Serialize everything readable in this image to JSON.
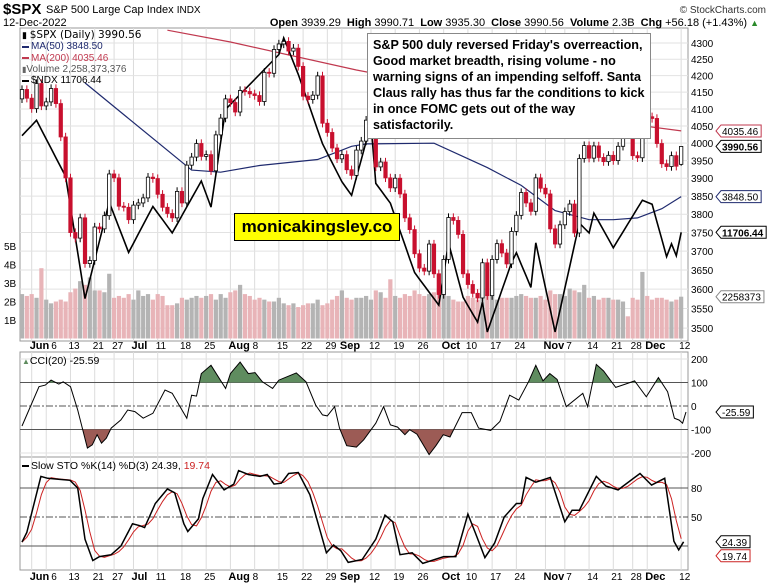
{
  "header": {
    "symbol": "$SPX",
    "name": "S&P 500 Large Cap Index",
    "exchange": "INDX",
    "copyright": "© StockCharts.com",
    "date": "12-Dec-2022",
    "open_label": "Open",
    "open": "3939.29",
    "high_label": "High",
    "high": "3990.71",
    "low_label": "Low",
    "low": "3935.30",
    "close_label": "Close",
    "close": "3990.56",
    "volume_label": "Volume",
    "volume": "2.3B",
    "chg_label": "Chg",
    "chg": "+56.18 (+1.43%)",
    "chg_arrow": "▲"
  },
  "legend": {
    "price": "$SPX (Daily) 3990.56",
    "ma50": "MA(50) 3848.50",
    "ma200": "MA(200) 4035.46",
    "volume": "Volume 2,258,373,376",
    "ndx": "$NDX 11706.44",
    "cci": "CCI(20) -25.59",
    "sto_prefix": "Slow STO %K(14) %D(3) 24.39,",
    "sto_d": "19.74"
  },
  "annotation": "S&P 500 duly reversed Friday's overreaction, Good market breadth, rising volume - no warning signs of an impending selfoff. Santa Claus rally has thus far the conditions to kick in once FOMC gets out of the way satisfactorily.",
  "watermark": "monicakingsley.co",
  "colors": {
    "up": "#000000",
    "down": "#c8102e",
    "ma50": "#1f2a6e",
    "ma200": "#c0394f",
    "vol_up": "#b4b4b4",
    "vol_down": "#e8b4b8",
    "cci_pos": "#5f8c5f",
    "cci_neg": "#9c5b55",
    "sto_d": "#cc2222"
  },
  "chart_data": {
    "type": "candlestick",
    "title": "$SPX S&P 500 Large Cap Index INDX",
    "x_ticks": [
      {
        "label": "Jun",
        "i": 2,
        "bold": true
      },
      {
        "label": "6",
        "i": 5
      },
      {
        "label": "13",
        "i": 10
      },
      {
        "label": "21",
        "i": 15
      },
      {
        "label": "27",
        "i": 19
      },
      {
        "label": "Jul",
        "i": 23,
        "bold": true
      },
      {
        "label": "11",
        "i": 28
      },
      {
        "label": "18",
        "i": 33
      },
      {
        "label": "25",
        "i": 38
      },
      {
        "label": "Aug",
        "i": 43,
        "bold": true
      },
      {
        "label": "8",
        "i": 48
      },
      {
        "label": "15",
        "i": 53
      },
      {
        "label": "22",
        "i": 58
      },
      {
        "label": "29",
        "i": 63
      },
      {
        "label": "Sep",
        "i": 66,
        "bold": true
      },
      {
        "label": "12",
        "i": 72
      },
      {
        "label": "19",
        "i": 77
      },
      {
        "label": "26",
        "i": 82
      },
      {
        "label": "Oct",
        "i": 87,
        "bold": true
      },
      {
        "label": "10",
        "i": 92
      },
      {
        "label": "17",
        "i": 97
      },
      {
        "label": "24",
        "i": 102
      },
      {
        "label": "Nov",
        "i": 108,
        "bold": true
      },
      {
        "label": "7",
        "i": 112
      },
      {
        "label": "14",
        "i": 117
      },
      {
        "label": "21",
        "i": 122
      },
      {
        "label": "28",
        "i": 126
      },
      {
        "label": "Dec",
        "i": 129,
        "bold": true
      },
      {
        "label": "12",
        "i": 136
      }
    ],
    "price_ticks": [
      "4300",
      "4250",
      "4200",
      "4150",
      "4100",
      "4050",
      "4000",
      "3950",
      "3900",
      "3850",
      "3800",
      "3750",
      "3700",
      "3650",
      "3600",
      "3550",
      "3500"
    ],
    "price_range": [
      3500,
      4300
    ],
    "volume_ticks": [
      "5B",
      "4B",
      "3B",
      "2B",
      "1B"
    ],
    "spx_close": [
      4158,
      4132,
      4101,
      4176,
      4109,
      4121,
      4161,
      4116,
      4018,
      3901,
      3750,
      3735,
      3790,
      3667,
      3675,
      3765,
      3760,
      3796,
      3912,
      3901,
      3822,
      3819,
      3785,
      3825,
      3831,
      3845,
      3903,
      3899,
      3855,
      3819,
      3802,
      3790,
      3863,
      3831,
      3937,
      3960,
      3999,
      3962,
      3967,
      3921,
      4024,
      4073,
      4130,
      4119,
      4091,
      4155,
      4152,
      4145,
      4140,
      4122,
      4210,
      4207,
      4280,
      4297,
      4305,
      4275,
      4284,
      4228,
      4138,
      4128,
      4141,
      4199,
      4058,
      4031,
      3986,
      3955,
      3967,
      3924,
      3908,
      3980,
      4006,
      4067,
      4110,
      3932,
      3946,
      3901,
      3873,
      3900,
      3856,
      3790,
      3758,
      3693,
      3655,
      3647,
      3719,
      3640,
      3586,
      3678,
      3791,
      3783,
      3745,
      3640,
      3612,
      3589,
      3577,
      3669,
      3583,
      3678,
      3720,
      3695,
      3666,
      3753,
      3797,
      3860,
      3831,
      3808,
      3901,
      3872,
      3856,
      3760,
      3719,
      3771,
      3807,
      3828,
      3749,
      3956,
      3993,
      3957,
      3992,
      3959,
      3947,
      3965,
      3950,
      3991,
      4027,
      4026,
      3964,
      3958,
      4080,
      4077,
      4072,
      3999,
      3941,
      3933,
      3964,
      3934,
      3990.56
    ],
    "volume_billions": [
      2.4,
      2.3,
      2.4,
      2.2,
      3.8,
      2.1,
      1.9,
      2.0,
      2.1,
      2.0,
      2.5,
      2.7,
      3.1,
      2.9,
      3.3,
      2.6,
      2.6,
      2.5,
      3.5,
      2.2,
      2.3,
      2.2,
      2.4,
      2.1,
      2.6,
      2.3,
      2.4,
      2.1,
      2.4,
      2.3,
      1.8,
      1.8,
      1.9,
      2.2,
      2.1,
      2.2,
      2.3,
      2.2,
      2.3,
      2.4,
      2.1,
      2.4,
      2.2,
      2.5,
      2.6,
      2.9,
      2.4,
      2.3,
      2.1,
      2.2,
      2.1,
      2.0,
      2.0,
      2.2,
      1.9,
      1.8,
      1.9,
      1.7,
      1.8,
      1.9,
      1.9,
      2.1,
      1.8,
      1.9,
      2.1,
      2.3,
      2.6,
      2.2,
      2.1,
      2.2,
      2.2,
      2.3,
      2.1,
      2.6,
      2.5,
      2.2,
      3.2,
      2.3,
      2.2,
      2.4,
      2.3,
      2.6,
      2.4,
      2.3,
      2.4,
      2.5,
      2.6,
      2.4,
      2.3,
      2.1,
      2.0,
      2.0,
      2.3,
      2.2,
      2.1,
      2.4,
      2.4,
      2.3,
      2.1,
      2.2,
      2.2,
      2.2,
      2.3,
      2.4,
      2.3,
      2.2,
      2.2,
      2.3,
      2.1,
      2.6,
      2.4,
      2.4,
      2.3,
      2.7,
      2.6,
      2.5,
      2.9,
      2.2,
      2.3,
      2.1,
      2.2,
      2.2,
      2.1,
      2.1,
      2.0,
      1.2,
      2.2,
      2.1,
      3.6,
      2.3,
      2.1,
      2.2,
      2.2,
      2.1,
      2.0,
      2.1,
      2.26
    ],
    "ndx": [
      [
        0,
        12681
      ],
      [
        3,
        12836
      ],
      [
        9,
        12270
      ],
      [
        13,
        11037
      ],
      [
        18,
        12010
      ],
      [
        22,
        11503
      ],
      [
        27,
        11967
      ],
      [
        31,
        11700
      ],
      [
        37,
        12224
      ],
      [
        39,
        11960
      ],
      [
        42,
        12947
      ],
      [
        53,
        13500
      ],
      [
        54,
        13667
      ],
      [
        57,
        13300
      ],
      [
        62,
        12600
      ],
      [
        66,
        12217
      ],
      [
        68,
        12080
      ],
      [
        72,
        12800
      ],
      [
        73,
        12200
      ],
      [
        76,
        12000
      ],
      [
        81,
        11300
      ],
      [
        86,
        10971
      ],
      [
        88,
        11600
      ],
      [
        91,
        11050
      ],
      [
        94,
        10800
      ],
      [
        95,
        11000
      ],
      [
        96,
        10700
      ],
      [
        101,
        11400
      ],
      [
        102,
        11500
      ],
      [
        105,
        11150
      ],
      [
        106,
        11600
      ],
      [
        110,
        10700
      ],
      [
        115,
        11800
      ],
      [
        117,
        11700
      ],
      [
        118,
        11900
      ],
      [
        122,
        11550
      ],
      [
        128,
        12030
      ],
      [
        130,
        11990
      ],
      [
        133,
        11460
      ],
      [
        134,
        11590
      ],
      [
        135,
        11470
      ],
      [
        136,
        11706.44
      ]
    ],
    "ndx_range": [
      10700,
      13667
    ],
    "ma50": [
      [
        13,
        4178
      ],
      [
        35,
        3923
      ],
      [
        41,
        3917
      ],
      [
        49,
        3936
      ],
      [
        61,
        3953
      ],
      [
        68,
        3991
      ],
      [
        71,
        3998
      ],
      [
        85,
        4000
      ],
      [
        96,
        3930
      ],
      [
        103,
        3880
      ],
      [
        110,
        3810
      ],
      [
        117,
        3785
      ],
      [
        122,
        3785
      ],
      [
        127,
        3790
      ],
      [
        132,
        3815
      ],
      [
        136,
        3848.5
      ]
    ],
    "ma200": [
      [
        30,
        4340
      ],
      [
        43,
        4303
      ],
      [
        69,
        4217
      ],
      [
        100,
        4130
      ],
      [
        124,
        4058
      ],
      [
        136,
        4035.46
      ]
    ],
    "cci": {
      "ticks": [
        "200",
        "100",
        "0",
        "-100",
        "-200"
      ],
      "last": "-25.59",
      "points": [
        [
          0,
          -85
        ],
        [
          3.5,
          82
        ],
        [
          4.8,
          89
        ],
        [
          6,
          110
        ],
        [
          7.6,
          93
        ],
        [
          8.5,
          103
        ],
        [
          10,
          82
        ],
        [
          11.5,
          -17
        ],
        [
          13.5,
          -179
        ],
        [
          14.5,
          -165
        ],
        [
          15.5,
          -122
        ],
        [
          16.4,
          -158
        ],
        [
          17.4,
          -137
        ],
        [
          18.4,
          -94
        ],
        [
          20.4,
          -59
        ],
        [
          21.8,
          -17
        ],
        [
          23.3,
          -24
        ],
        [
          25,
          -52
        ],
        [
          27,
          -31
        ],
        [
          29.5,
          68
        ],
        [
          31,
          54
        ],
        [
          34,
          -52
        ],
        [
          35,
          46
        ],
        [
          36,
          42
        ],
        [
          37,
          138
        ],
        [
          39,
          173
        ],
        [
          42,
          75
        ],
        [
          43,
          138
        ],
        [
          45,
          187
        ],
        [
          46.7,
          138
        ],
        [
          48.1,
          142
        ],
        [
          49.6,
          103
        ],
        [
          51.7,
          75
        ],
        [
          53,
          110
        ],
        [
          56.6,
          141
        ],
        [
          58.6,
          103
        ],
        [
          60.6,
          4
        ],
        [
          62,
          -38
        ],
        [
          63,
          -42
        ],
        [
          64.5,
          -3
        ],
        [
          65.5,
          -94
        ],
        [
          67,
          -169
        ],
        [
          69,
          -175
        ],
        [
          70.5,
          -144
        ],
        [
          73,
          -73
        ],
        [
          74.6,
          -3
        ],
        [
          76,
          -80
        ],
        [
          77.5,
          -90
        ],
        [
          79,
          -122
        ],
        [
          80,
          -101
        ],
        [
          81.5,
          -120
        ],
        [
          84,
          -207
        ],
        [
          85.4,
          -169
        ],
        [
          86.9,
          -122
        ],
        [
          88.3,
          -132
        ],
        [
          90.8,
          -28
        ],
        [
          92.7,
          -28
        ],
        [
          94.2,
          -94
        ],
        [
          96.7,
          -104
        ],
        [
          98.6,
          -66
        ],
        [
          100.6,
          46
        ],
        [
          102.5,
          25
        ],
        [
          104.5,
          103
        ],
        [
          106,
          173
        ],
        [
          107.5,
          107
        ],
        [
          108.9,
          138
        ],
        [
          110.4,
          113
        ],
        [
          112.3,
          -3
        ],
        [
          115.7,
          54
        ],
        [
          116.7,
          -3
        ],
        [
          118.5,
          177
        ],
        [
          120,
          149
        ],
        [
          122.5,
          79
        ],
        [
          124.5,
          93
        ],
        [
          126.4,
          107
        ],
        [
          128.8,
          39
        ],
        [
          131.3,
          121
        ],
        [
          133.2,
          61
        ],
        [
          134.6,
          -52
        ],
        [
          135.6,
          -60
        ],
        [
          136.3,
          -73
        ],
        [
          137,
          -25.59
        ]
      ]
    },
    "sto": {
      "ticks": [
        "80",
        "50"
      ],
      "k_last": "24.39",
      "d_last": "19.74",
      "k_points": [
        [
          0,
          24
        ],
        [
          1,
          34
        ],
        [
          3.9,
          92
        ],
        [
          5.3,
          90
        ],
        [
          7.5,
          89
        ],
        [
          9.9,
          88
        ],
        [
          11.5,
          80
        ],
        [
          13,
          27
        ],
        [
          14.6,
          5
        ],
        [
          16,
          9
        ],
        [
          18.4,
          11
        ],
        [
          20.4,
          20
        ],
        [
          22.8,
          43
        ],
        [
          24.3,
          41
        ],
        [
          25.3,
          39
        ],
        [
          27.5,
          64
        ],
        [
          30,
          79
        ],
        [
          31.5,
          75
        ],
        [
          33.4,
          43
        ],
        [
          34.2,
          35
        ],
        [
          36.4,
          48
        ],
        [
          37.3,
          69
        ],
        [
          39.3,
          94
        ],
        [
          41.7,
          78
        ],
        [
          43.7,
          84
        ],
        [
          44.7,
          98
        ],
        [
          46.7,
          94
        ],
        [
          49.1,
          92
        ],
        [
          50.6,
          94
        ],
        [
          52,
          84
        ],
        [
          53.5,
          85
        ],
        [
          55,
          95
        ],
        [
          57,
          96
        ],
        [
          59.4,
          73
        ],
        [
          62.8,
          13
        ],
        [
          64.3,
          21
        ],
        [
          65.8,
          15
        ],
        [
          67.3,
          3
        ],
        [
          70.2,
          6
        ],
        [
          73,
          27
        ],
        [
          74.9,
          52
        ],
        [
          76.5,
          45
        ],
        [
          78,
          11
        ],
        [
          80.5,
          13
        ],
        [
          82.7,
          2
        ],
        [
          87,
          9
        ],
        [
          89.5,
          9
        ],
        [
          92,
          53
        ],
        [
          93.5,
          34
        ],
        [
          95.5,
          8
        ],
        [
          97.5,
          23
        ],
        [
          99.5,
          50
        ],
        [
          102,
          64
        ],
        [
          103,
          64
        ],
        [
          104,
          91
        ],
        [
          106,
          86
        ],
        [
          109,
          91
        ],
        [
          112,
          45
        ],
        [
          113.5,
          57
        ],
        [
          115,
          57
        ],
        [
          118.5,
          92
        ],
        [
          120.5,
          82
        ],
        [
          123,
          78
        ],
        [
          127.5,
          95
        ],
        [
          129.9,
          83
        ],
        [
          132.6,
          90
        ],
        [
          134.5,
          25
        ],
        [
          135.5,
          16
        ],
        [
          136.5,
          24.39
        ]
      ]
    }
  }
}
